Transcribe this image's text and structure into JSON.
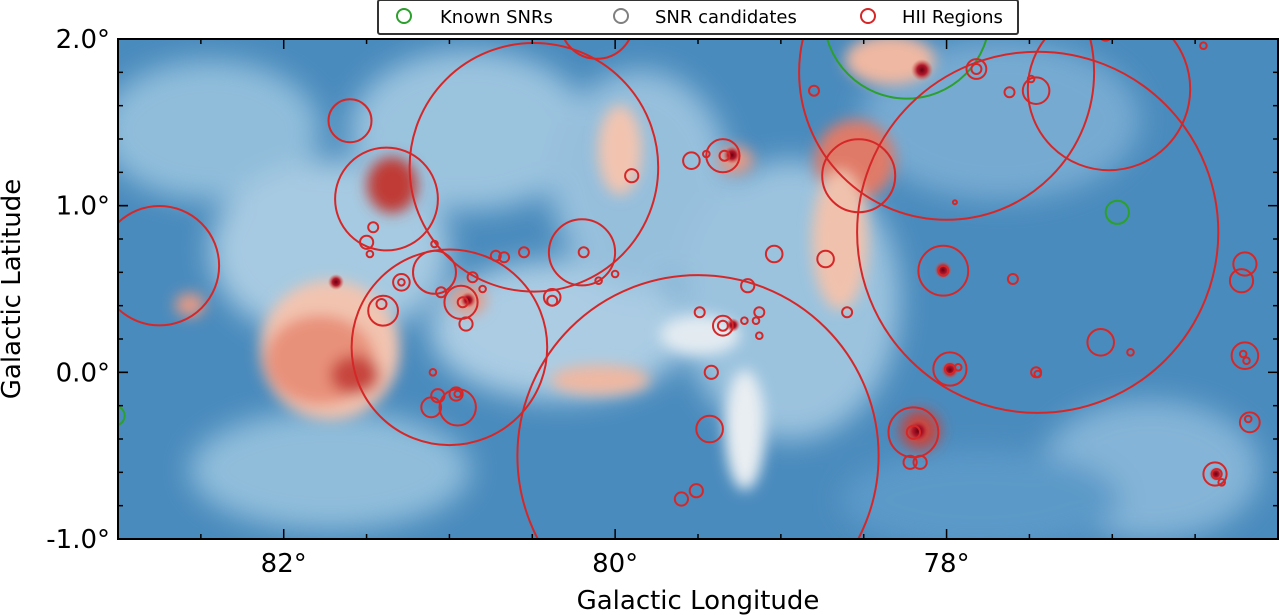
{
  "chart_data": {
    "type": "scatter",
    "xlabel": "Galactic Longitude",
    "ylabel": "Galactic Latitude",
    "xlim": [
      83.0,
      76.0
    ],
    "ylim": [
      -1.0,
      2.0
    ],
    "x_ticks": [
      82,
      80,
      78
    ],
    "x_tick_labels": [
      "82°",
      "80°",
      "78°"
    ],
    "y_ticks": [
      2.0,
      1.0,
      0.0,
      -1.0
    ],
    "y_tick_labels": [
      "2.0°",
      "1.0°",
      "0.0°",
      "-1.0°"
    ],
    "legend_position": "top-center",
    "legend": [
      {
        "label": "Known SNRs",
        "color": "#2ca02c"
      },
      {
        "label": "SNR candidates",
        "color": "#808080"
      },
      {
        "label": "HII Regions",
        "color": "#d62728"
      }
    ],
    "colors": {
      "background_map": "#4f8fc0",
      "emission": "#c8403a",
      "hii": "#d62728",
      "snr": "#2ca02c"
    },
    "series": [
      {
        "name": "Known SNRs",
        "points": [
          [
            78.24,
            2.14,
            0.5
          ],
          [
            76.97,
            0.96,
            0.07
          ],
          [
            83.02,
            -0.26,
            0.06
          ]
        ]
      },
      {
        "name": "HII Regions",
        "points": [
          [
            82.75,
            0.64,
            0.36
          ],
          [
            81.4,
            0.37,
            0.09
          ],
          [
            81.41,
            0.41,
            0.03
          ],
          [
            81.0,
            0.15,
            0.59
          ],
          [
            80.49,
            1.23,
            0.75
          ],
          [
            81.6,
            1.51,
            0.13
          ],
          [
            81.38,
            1.04,
            0.31
          ],
          [
            81.09,
            0.6,
            0.13
          ],
          [
            81.05,
            0.48,
            0.03
          ],
          [
            81.09,
            0.77,
            0.02
          ],
          [
            81.29,
            0.54,
            0.05
          ],
          [
            81.29,
            0.54,
            0.02
          ],
          [
            81.46,
            0.87,
            0.03
          ],
          [
            81.5,
            0.78,
            0.04
          ],
          [
            81.48,
            0.71,
            0.02
          ],
          [
            80.93,
            0.42,
            0.1
          ],
          [
            80.92,
            0.42,
            0.03
          ],
          [
            80.9,
            0.29,
            0.04
          ],
          [
            80.86,
            0.57,
            0.03
          ],
          [
            80.8,
            0.5,
            0.02
          ],
          [
            80.72,
            0.7,
            0.03
          ],
          [
            80.67,
            0.69,
            0.03
          ],
          [
            80.55,
            0.72,
            0.03
          ],
          [
            80.2,
            0.72,
            0.2
          ],
          [
            80.19,
            0.72,
            0.03
          ],
          [
            80.38,
            0.45,
            0.05
          ],
          [
            80.38,
            0.43,
            0.03
          ],
          [
            80.0,
            0.59,
            0.02
          ],
          [
            80.1,
            0.55,
            0.02
          ],
          [
            80.11,
            2.1,
            0.22
          ],
          [
            79.9,
            1.18,
            0.04
          ],
          [
            81.1,
            0.0,
            0.02
          ],
          [
            81.07,
            -0.14,
            0.04
          ],
          [
            81.11,
            -0.21,
            0.06
          ],
          [
            80.95,
            -0.21,
            0.11
          ],
          [
            80.96,
            -0.13,
            0.04
          ],
          [
            80.95,
            -0.13,
            0.02
          ],
          [
            79.5,
            -0.5,
            1.09
          ],
          [
            79.54,
            1.27,
            0.05
          ],
          [
            79.45,
            1.31,
            0.02
          ],
          [
            79.35,
            1.3,
            0.1
          ],
          [
            79.34,
            1.3,
            0.03
          ],
          [
            79.22,
            0.31,
            0.02
          ],
          [
            79.35,
            0.28,
            0.06
          ],
          [
            79.35,
            0.28,
            0.03
          ],
          [
            79.49,
            0.36,
            0.03
          ],
          [
            79.2,
            0.52,
            0.04
          ],
          [
            79.13,
            0.36,
            0.03
          ],
          [
            79.15,
            0.31,
            0.02
          ],
          [
            79.13,
            0.22,
            0.02
          ],
          [
            79.04,
            0.71,
            0.05
          ],
          [
            79.42,
            0.0,
            0.04
          ],
          [
            79.43,
            -0.34,
            0.08
          ],
          [
            79.6,
            -0.76,
            0.04
          ],
          [
            79.51,
            -0.71,
            0.04
          ],
          [
            78.8,
            1.69,
            0.03
          ],
          [
            78.6,
            0.36,
            0.03
          ],
          [
            78.73,
            0.68,
            0.05
          ],
          [
            78.53,
            1.18,
            0.22
          ],
          [
            78.0,
            1.8,
            0.89
          ],
          [
            77.82,
            1.82,
            0.06
          ],
          [
            77.82,
            1.82,
            0.03
          ],
          [
            77.45,
            0.84,
            1.09
          ],
          [
            77.95,
            1.02,
            0.01
          ],
          [
            77.62,
            1.68,
            0.03
          ],
          [
            78.02,
            0.61,
            0.15
          ],
          [
            78.02,
            0.61,
            0.03
          ],
          [
            77.98,
            0.02,
            0.1
          ],
          [
            77.98,
            0.02,
            0.03
          ],
          [
            77.93,
            0.03,
            0.02
          ],
          [
            77.6,
            0.56,
            0.03
          ],
          [
            78.2,
            -0.36,
            0.15
          ],
          [
            78.2,
            -0.36,
            0.04
          ],
          [
            78.22,
            -0.54,
            0.04
          ],
          [
            78.16,
            -0.54,
            0.04
          ],
          [
            77.46,
            0.0,
            0.03
          ],
          [
            77.45,
            -0.01,
            0.02
          ],
          [
            77.02,
            1.7,
            0.49
          ],
          [
            77.46,
            1.69,
            0.08
          ],
          [
            77.49,
            1.76,
            0.02
          ],
          [
            77.04,
            2.03,
            0.04
          ],
          [
            76.45,
            1.96,
            0.02
          ],
          [
            77.07,
            0.18,
            0.08
          ],
          [
            76.89,
            0.12,
            0.02
          ],
          [
            76.2,
            0.65,
            0.07
          ],
          [
            76.22,
            0.55,
            0.07
          ],
          [
            76.2,
            0.1,
            0.08
          ],
          [
            76.21,
            0.11,
            0.02
          ],
          [
            76.19,
            0.07,
            0.02
          ],
          [
            76.17,
            -0.3,
            0.06
          ],
          [
            76.18,
            -0.28,
            0.02
          ],
          [
            76.38,
            -0.61,
            0.07
          ],
          [
            76.37,
            -0.61,
            0.03
          ],
          [
            76.34,
            -0.66,
            0.02
          ]
        ]
      }
    ]
  }
}
